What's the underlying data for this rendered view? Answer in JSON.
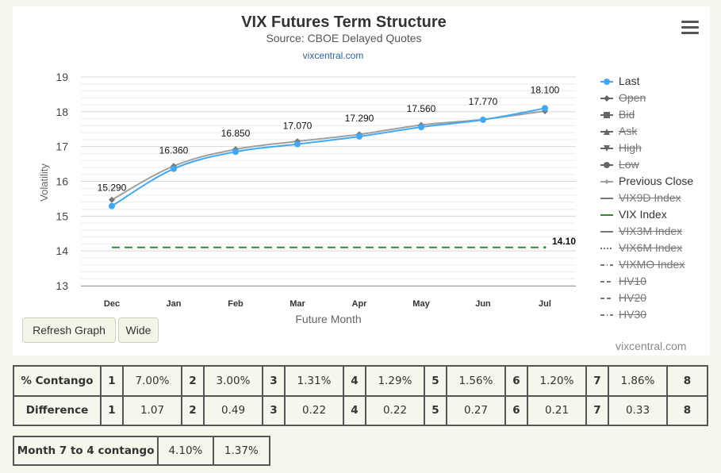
{
  "chart_data": {
    "type": "line",
    "title": "VIX Futures Term Structure",
    "subtitle": "Source: CBOE Delayed Quotes",
    "link": "vixcentral.com",
    "xlabel": "Future Month",
    "ylabel": "Volatility",
    "categories": [
      "Dec",
      "Jan",
      "Feb",
      "Mar",
      "Apr",
      "May",
      "Jun",
      "Jul"
    ],
    "ylim": [
      13,
      19
    ],
    "yticks": [
      "13",
      "14",
      "15",
      "16",
      "17",
      "18",
      "19"
    ],
    "series": [
      {
        "name": "Last",
        "color": "#3fa9f5",
        "values": [
          15.29,
          16.36,
          16.85,
          17.07,
          17.29,
          17.56,
          17.77,
          18.1
        ],
        "labels": [
          "15.290",
          "16.360",
          "16.850",
          "17.070",
          "17.290",
          "17.560",
          "17.770",
          "18.100"
        ]
      },
      {
        "name": "Previous Close",
        "color": "#a0a0a0",
        "values": [
          15.47,
          16.44,
          16.92,
          17.15,
          17.35,
          17.62,
          17.78,
          18.02
        ]
      },
      {
        "name": "VIX Index",
        "color": "#2e8b2e",
        "constant": 14.1,
        "label": "14.10"
      }
    ],
    "legend_position": "right",
    "grid": true
  },
  "legend": [
    {
      "label": "Last",
      "hidden": false,
      "symbol": "circle",
      "color": "#3fa9f5"
    },
    {
      "label": "Open",
      "hidden": true,
      "symbol": "diamond",
      "color": "#666666"
    },
    {
      "label": "Bid",
      "hidden": true,
      "symbol": "square",
      "color": "#666666"
    },
    {
      "label": "Ask",
      "hidden": true,
      "symbol": "triangle",
      "color": "#666666"
    },
    {
      "label": "High",
      "hidden": true,
      "symbol": "triangle-down",
      "color": "#666666"
    },
    {
      "label": "Low",
      "hidden": true,
      "symbol": "circle",
      "color": "#666666"
    },
    {
      "label": "Previous Close",
      "hidden": false,
      "symbol": "diamond-small",
      "color": "#a0a0a0"
    },
    {
      "label": "VIX9D Index",
      "hidden": true,
      "symbol": "line",
      "color": "#777777"
    },
    {
      "label": "VIX Index",
      "hidden": false,
      "symbol": "line",
      "color": "#2e8b2e"
    },
    {
      "label": "VIX3M Index",
      "hidden": true,
      "symbol": "line",
      "color": "#777777"
    },
    {
      "label": "VIX6M Index",
      "hidden": true,
      "symbol": "dotted",
      "color": "#777777"
    },
    {
      "label": "VIXMO Index",
      "hidden": true,
      "symbol": "dashdot",
      "color": "#777777"
    },
    {
      "label": "HV10",
      "hidden": true,
      "symbol": "dashed",
      "color": "#777777"
    },
    {
      "label": "HV20",
      "hidden": true,
      "symbol": "dashed",
      "color": "#777777"
    },
    {
      "label": "HV30",
      "hidden": true,
      "symbol": "dashdot",
      "color": "#777777"
    }
  ],
  "buttons": {
    "refresh": "Refresh Graph",
    "wide": "Wide"
  },
  "credit": "vixcentral.com",
  "contango_table": {
    "rows": [
      {
        "label": "% Contango",
        "cells": [
          [
            "1",
            "7.00%"
          ],
          [
            "2",
            "3.00%"
          ],
          [
            "3",
            "1.31%"
          ],
          [
            "4",
            "1.29%"
          ],
          [
            "5",
            "1.56%"
          ],
          [
            "6",
            "1.20%"
          ],
          [
            "7",
            "1.86%"
          ]
        ],
        "last": "8"
      },
      {
        "label": "Difference",
        "cells": [
          [
            "1",
            "1.07"
          ],
          [
            "2",
            "0.49"
          ],
          [
            "3",
            "0.22"
          ],
          [
            "4",
            "0.22"
          ],
          [
            "5",
            "0.27"
          ],
          [
            "6",
            "0.21"
          ],
          [
            "7",
            "0.33"
          ]
        ],
        "last": "8"
      }
    ]
  },
  "month_table": {
    "label": "Month 7 to 4 contango",
    "value1": "4.10%",
    "value2": "1.37%"
  }
}
